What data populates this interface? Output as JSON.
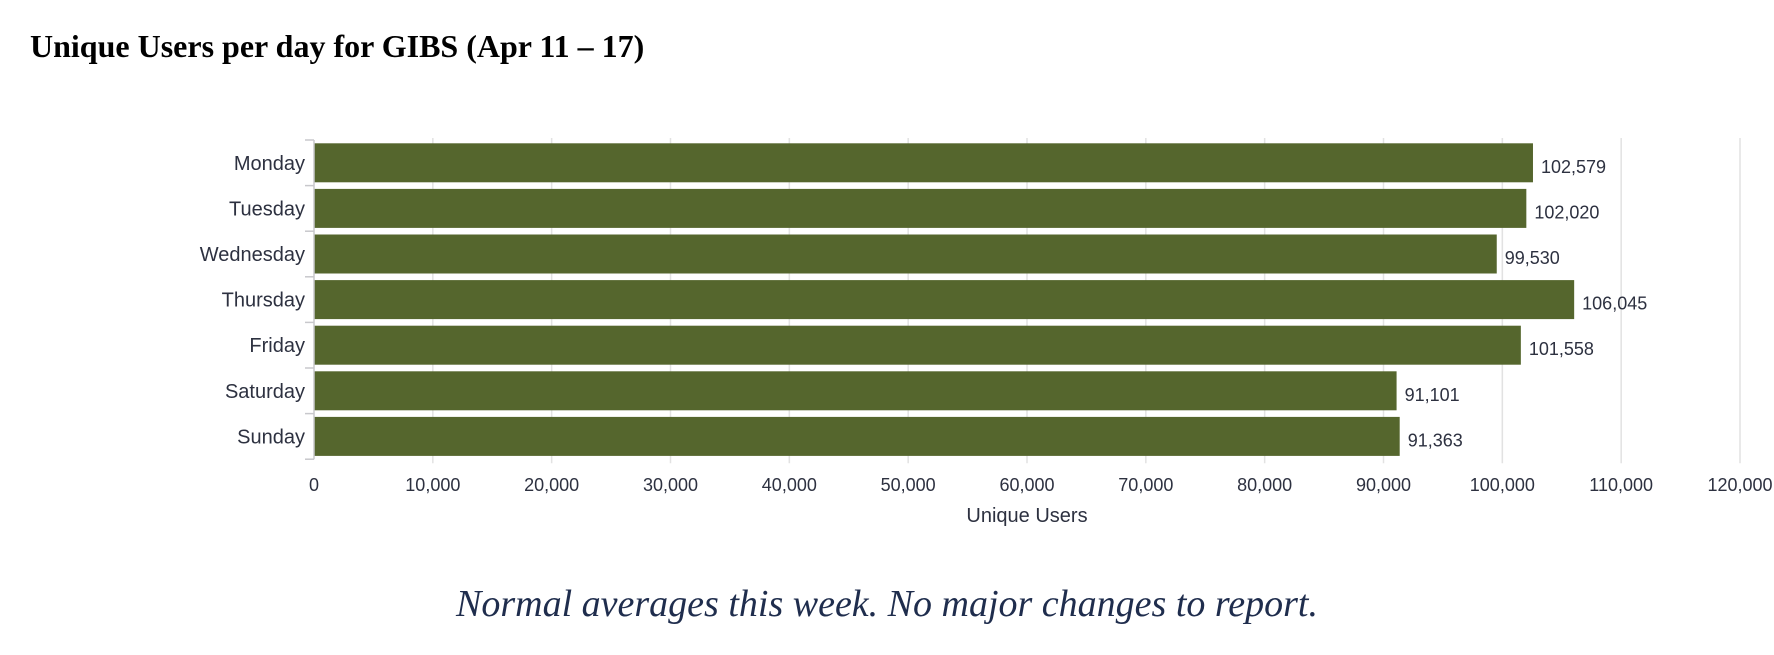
{
  "page": {
    "title": "Unique Users per day for GIBS (Apr 11 – 17)",
    "caption": "Normal averages this week.  No major changes to report."
  },
  "colors": {
    "bar": "#55662d",
    "grid": "#e2e2e2",
    "axis": "#c8c8cc",
    "label_text": "#2d3140"
  },
  "chart_data": {
    "type": "bar",
    "orientation": "horizontal",
    "categories": [
      "Monday",
      "Tuesday",
      "Wednesday",
      "Thursday",
      "Friday",
      "Saturday",
      "Sunday"
    ],
    "values": [
      102579,
      102020,
      99530,
      106045,
      101558,
      91101,
      91363
    ],
    "value_labels": [
      "102,579",
      "102,020",
      "99,530",
      "106,045",
      "101,558",
      "91,101",
      "91,363"
    ],
    "xlabel": "Unique Users",
    "ylabel": "",
    "xlim": [
      0,
      120000
    ],
    "x_ticks": [
      0,
      10000,
      20000,
      30000,
      40000,
      50000,
      60000,
      70000,
      80000,
      90000,
      100000,
      110000,
      120000
    ],
    "x_tick_labels": [
      "0",
      "10,000",
      "20,000",
      "30,000",
      "40,000",
      "50,000",
      "60,000",
      "70,000",
      "80,000",
      "90,000",
      "100,000",
      "110,000",
      "120,000"
    ],
    "grid": true,
    "legend": "none"
  }
}
